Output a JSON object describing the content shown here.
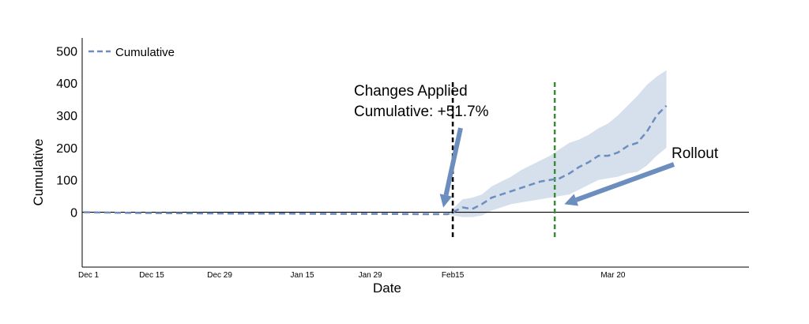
{
  "chart_data": {
    "type": "line",
    "title": "",
    "xlabel": "Date",
    "ylabel": "Cumulative",
    "ylim": [
      -170,
      540
    ],
    "y_ticks": [
      0,
      100,
      200,
      300,
      400,
      500
    ],
    "x_range_days": [
      0,
      137
    ],
    "x_ticks": [
      {
        "label": "Dec 1",
        "day": 0
      },
      {
        "label": "Dec 15",
        "day": 14
      },
      {
        "label": "Dec 29",
        "day": 28
      },
      {
        "label": "Jan 15",
        "day": 45
      },
      {
        "label": "Jan 29",
        "day": 59
      },
      {
        "label": "Feb15",
        "day": 76
      },
      {
        "label": "Mar 20",
        "day": 109
      }
    ],
    "legend": {
      "entries": [
        "Cumulative"
      ],
      "position": "top-left"
    },
    "series": [
      {
        "name": "Cumulative",
        "color": "#6c8ebf",
        "style": "dashed",
        "x": [
          0,
          10,
          20,
          30,
          40,
          50,
          60,
          70,
          75,
          76,
          78,
          80,
          82,
          84,
          86,
          88,
          90,
          92,
          94,
          96,
          98,
          100,
          102,
          104,
          106,
          108,
          110,
          112,
          114,
          116,
          118,
          120
        ],
        "y": [
          0,
          -2,
          -3,
          -4,
          -4,
          -5,
          -5,
          -6,
          -6,
          0,
          15,
          10,
          25,
          45,
          55,
          65,
          75,
          85,
          95,
          100,
          105,
          120,
          140,
          155,
          175,
          175,
          185,
          205,
          215,
          250,
          300,
          330
        ],
        "ci_lower": [
          0,
          -2,
          -3,
          -4,
          -4,
          -5,
          -5,
          -6,
          -6,
          -10,
          -15,
          -15,
          -10,
          5,
          15,
          25,
          30,
          35,
          40,
          45,
          50,
          55,
          70,
          85,
          100,
          105,
          110,
          120,
          125,
          145,
          175,
          200
        ],
        "ci_upper": [
          0,
          -2,
          -3,
          -4,
          -4,
          -5,
          -5,
          -6,
          -6,
          10,
          40,
          45,
          55,
          80,
          95,
          110,
          130,
          145,
          160,
          175,
          195,
          215,
          225,
          240,
          260,
          275,
          300,
          330,
          360,
          395,
          420,
          440
        ]
      }
    ],
    "horizontal_lines": [
      {
        "y": 0,
        "color": "#000000"
      }
    ],
    "vertical_lines": [
      {
        "day": 76,
        "color": "#000000",
        "style": "dashed"
      },
      {
        "day": 97,
        "color": "#3a8a3a",
        "style": "dashed"
      }
    ],
    "annotations": [
      {
        "lines": [
          "Changes Applied",
          "Cumulative: +51.7%"
        ],
        "arrow_color": "#6c8ebf",
        "target_day": 76,
        "target_y": 0
      },
      {
        "lines": [
          "Rollout"
        ],
        "arrow_color": "#6c8ebf",
        "target_day": 98,
        "target_y": 20
      }
    ]
  }
}
